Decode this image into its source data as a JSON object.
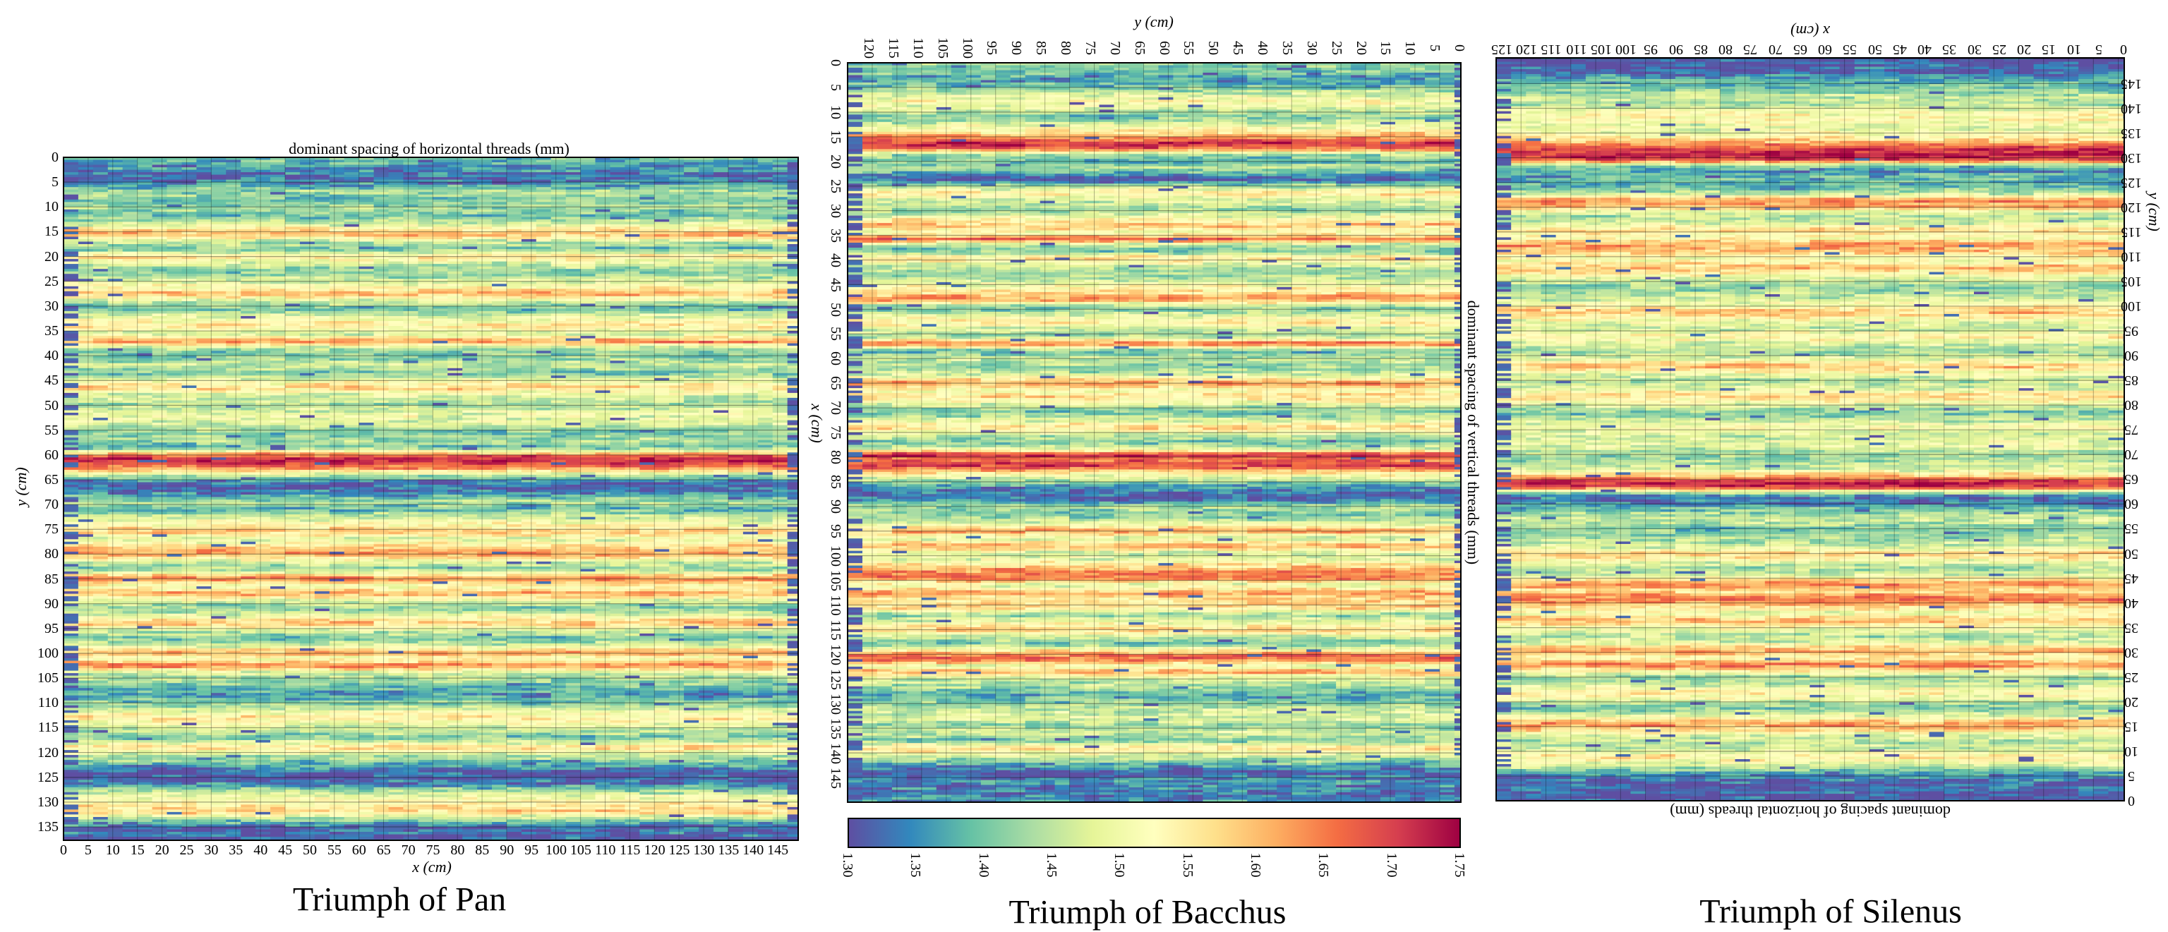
{
  "colormap": {
    "name": "Spectral",
    "stops": [
      "#5e4fa2",
      "#3288bd",
      "#66c2a5",
      "#abdda4",
      "#e6f598",
      "#ffffbf",
      "#fee08b",
      "#fdae61",
      "#f46d43",
      "#d53e4f",
      "#9e0142"
    ],
    "vmin": 1.3,
    "vmax": 1.75,
    "ticks": [
      "1.30",
      "1.35",
      "1.40",
      "1.45",
      "1.50",
      "1.55",
      "1.60",
      "1.65",
      "1.70",
      "1.75"
    ]
  },
  "chart_data": [
    {
      "type": "heatmap",
      "caption": "Triumph of Pan",
      "title": "dominant spacing of horizontal threads (mm)",
      "xlabel": "x (cm)",
      "ylabel": "y (cm)",
      "xlim": [
        0,
        149
      ],
      "ylim": [
        0,
        138
      ],
      "y_direction": "down",
      "grid": true,
      "xticks": [
        "0",
        "5",
        "10",
        "15",
        "20",
        "25",
        "30",
        "35",
        "40",
        "45",
        "50",
        "55",
        "60",
        "65",
        "70",
        "75",
        "80",
        "85",
        "90",
        "95",
        "100",
        "105",
        "110",
        "115",
        "120",
        "125",
        "130",
        "135",
        "140",
        "145"
      ],
      "yticks": [
        "0",
        "5",
        "10",
        "15",
        "20",
        "25",
        "30",
        "35",
        "40",
        "45",
        "50",
        "55",
        "60",
        "65",
        "70",
        "75",
        "80",
        "85",
        "90",
        "95",
        "100",
        "105",
        "110",
        "115",
        "120",
        "125",
        "130",
        "135"
      ],
      "row_profile": [
        [
          0,
          1.4
        ],
        [
          2,
          1.36
        ],
        [
          4,
          1.32
        ],
        [
          5.5,
          1.36
        ],
        [
          7,
          1.44
        ],
        [
          8.5,
          1.4
        ],
        [
          10,
          1.43
        ],
        [
          12,
          1.4
        ],
        [
          13.5,
          1.48
        ],
        [
          15.5,
          1.62
        ],
        [
          17,
          1.46
        ],
        [
          18.5,
          1.4
        ],
        [
          20,
          1.56
        ],
        [
          21.5,
          1.46
        ],
        [
          23,
          1.41
        ],
        [
          25,
          1.47
        ],
        [
          27.5,
          1.61
        ],
        [
          29,
          1.47
        ],
        [
          30.5,
          1.38
        ],
        [
          32,
          1.48
        ],
        [
          34,
          1.56
        ],
        [
          35.5,
          1.46
        ],
        [
          37.2,
          1.64
        ],
        [
          38.5,
          1.44
        ],
        [
          40,
          1.4
        ],
        [
          42,
          1.47
        ],
        [
          43.5,
          1.4
        ],
        [
          45,
          1.5
        ],
        [
          46.5,
          1.58
        ],
        [
          48,
          1.47
        ],
        [
          50,
          1.44
        ],
        [
          52,
          1.5
        ],
        [
          54,
          1.47
        ],
        [
          55.5,
          1.4
        ],
        [
          57,
          1.44
        ],
        [
          58.5,
          1.38
        ],
        [
          60,
          1.66
        ],
        [
          61,
          1.72
        ],
        [
          62.5,
          1.66
        ],
        [
          64,
          1.46
        ],
        [
          65.5,
          1.33
        ],
        [
          66.5,
          1.31
        ],
        [
          68,
          1.36
        ],
        [
          69.5,
          1.44
        ],
        [
          71,
          1.38
        ],
        [
          72.5,
          1.47
        ],
        [
          74,
          1.52
        ],
        [
          75.5,
          1.6
        ],
        [
          77,
          1.48
        ],
        [
          78.5,
          1.58
        ],
        [
          80,
          1.63
        ],
        [
          81.5,
          1.48
        ],
        [
          83,
          1.42
        ],
        [
          85,
          1.66
        ],
        [
          86.5,
          1.5
        ],
        [
          88,
          1.62
        ],
        [
          89.5,
          1.47
        ],
        [
          91,
          1.41
        ],
        [
          92.5,
          1.5
        ],
        [
          94,
          1.6
        ],
        [
          95.5,
          1.46
        ],
        [
          97,
          1.4
        ],
        [
          98.5,
          1.47
        ],
        [
          100,
          1.63
        ],
        [
          101,
          1.5
        ],
        [
          102.5,
          1.65
        ],
        [
          104,
          1.46
        ],
        [
          105.5,
          1.43
        ],
        [
          107,
          1.38
        ],
        [
          108.5,
          1.36
        ],
        [
          110,
          1.41
        ],
        [
          111.5,
          1.48
        ],
        [
          113,
          1.56
        ],
        [
          115,
          1.47
        ],
        [
          117,
          1.4
        ],
        [
          119,
          1.57
        ],
        [
          120.5,
          1.46
        ],
        [
          122.5,
          1.38
        ],
        [
          124,
          1.31
        ],
        [
          125.5,
          1.31
        ],
        [
          127,
          1.38
        ],
        [
          128.5,
          1.48
        ],
        [
          130,
          1.53
        ],
        [
          132,
          1.59
        ],
        [
          133.5,
          1.42
        ],
        [
          135,
          1.33
        ],
        [
          138,
          1.32
        ]
      ]
    },
    {
      "type": "heatmap",
      "caption": "Triumph of Bacchus",
      "title": "dominant spacing of vertical threads (mm)",
      "xlabel": "x (cm)",
      "ylabel": "y (cm)",
      "xlim": [
        0,
        150
      ],
      "ylim": [
        0,
        124
      ],
      "orientation": "rotated 90° clockwise",
      "grid": true,
      "xticks": [
        "0",
        "5",
        "10",
        "15",
        "20",
        "25",
        "30",
        "35",
        "40",
        "45",
        "50",
        "55",
        "60",
        "65",
        "70",
        "75",
        "80",
        "85",
        "90",
        "95",
        "100",
        "105",
        "110",
        "115",
        "120",
        "125",
        "130",
        "135",
        "140",
        "145"
      ],
      "yticks": [
        "0",
        "5",
        "10",
        "15",
        "20",
        "25",
        "30",
        "35",
        "40",
        "45",
        "50",
        "55",
        "60",
        "65",
        "70",
        "75",
        "80",
        "85",
        "90",
        "95",
        "100",
        "105",
        "110",
        "115",
        "120"
      ],
      "row_profile": [
        [
          0,
          1.42
        ],
        [
          2,
          1.4
        ],
        [
          3.5,
          1.36
        ],
        [
          5,
          1.4
        ],
        [
          6.5,
          1.48
        ],
        [
          8,
          1.53
        ],
        [
          9.5,
          1.47
        ],
        [
          11,
          1.4
        ],
        [
          12.5,
          1.48
        ],
        [
          14,
          1.55
        ],
        [
          15.5,
          1.66
        ],
        [
          16.5,
          1.72
        ],
        [
          17.5,
          1.66
        ],
        [
          18.5,
          1.44
        ],
        [
          20,
          1.39
        ],
        [
          21.5,
          1.44
        ],
        [
          23,
          1.33
        ],
        [
          24,
          1.32
        ],
        [
          25,
          1.44
        ],
        [
          26.5,
          1.56
        ],
        [
          28,
          1.48
        ],
        [
          30,
          1.42
        ],
        [
          31.5,
          1.52
        ],
        [
          33,
          1.6
        ],
        [
          34.5,
          1.5
        ],
        [
          35.8,
          1.68
        ],
        [
          37,
          1.44
        ],
        [
          38.5,
          1.4
        ],
        [
          39.5,
          1.58
        ],
        [
          41,
          1.48
        ],
        [
          43,
          1.42
        ],
        [
          45,
          1.5
        ],
        [
          48,
          1.64
        ],
        [
          49,
          1.48
        ],
        [
          50,
          1.4
        ],
        [
          51.5,
          1.5
        ],
        [
          52.5,
          1.56
        ],
        [
          54,
          1.47
        ],
        [
          55.5,
          1.43
        ],
        [
          57,
          1.67
        ],
        [
          58.5,
          1.38
        ],
        [
          60,
          1.46
        ],
        [
          62,
          1.42
        ],
        [
          63.5,
          1.48
        ],
        [
          65,
          1.64
        ],
        [
          66.5,
          1.52
        ],
        [
          68,
          1.57
        ],
        [
          69.5,
          1.46
        ],
        [
          71,
          1.4
        ],
        [
          72.5,
          1.48
        ],
        [
          74,
          1.58
        ],
        [
          75.5,
          1.46
        ],
        [
          77,
          1.4
        ],
        [
          78.5,
          1.5
        ],
        [
          79.5,
          1.73
        ],
        [
          80.5,
          1.66
        ],
        [
          82,
          1.7
        ],
        [
          83,
          1.56
        ],
        [
          84.5,
          1.46
        ],
        [
          86,
          1.36
        ],
        [
          87.5,
          1.32
        ],
        [
          89,
          1.34
        ],
        [
          90,
          1.44
        ],
        [
          91.5,
          1.4
        ],
        [
          93,
          1.46
        ],
        [
          95,
          1.62
        ],
        [
          96.5,
          1.47
        ],
        [
          98,
          1.62
        ],
        [
          99.5,
          1.47
        ],
        [
          101,
          1.5
        ],
        [
          103,
          1.63
        ],
        [
          104.5,
          1.66
        ],
        [
          106,
          1.48
        ],
        [
          107.5,
          1.62
        ],
        [
          109,
          1.56
        ],
        [
          110.5,
          1.58
        ],
        [
          112,
          1.42
        ],
        [
          113.5,
          1.5
        ],
        [
          115,
          1.58
        ],
        [
          116.5,
          1.46
        ],
        [
          118,
          1.4
        ],
        [
          120,
          1.64
        ],
        [
          121,
          1.67
        ],
        [
          122.5,
          1.48
        ],
        [
          123.5,
          1.62
        ],
        [
          125,
          1.46
        ],
        [
          126.5,
          1.44
        ],
        [
          128,
          1.38
        ],
        [
          129.5,
          1.4
        ],
        [
          131,
          1.46
        ],
        [
          133,
          1.48
        ],
        [
          134.5,
          1.42
        ],
        [
          136,
          1.47
        ],
        [
          137.5,
          1.4
        ],
        [
          139,
          1.58
        ],
        [
          140.5,
          1.48
        ],
        [
          142,
          1.4
        ],
        [
          143.5,
          1.32
        ],
        [
          144.5,
          1.31
        ],
        [
          146,
          1.36
        ],
        [
          148,
          1.33
        ],
        [
          150,
          1.36
        ]
      ]
    },
    {
      "type": "heatmap",
      "caption": "Triumph of Silenus",
      "title": "dominant spacing of horizontal threads (mm)",
      "xlabel": "x (cm)",
      "ylabel": "y (cm)",
      "xlim": [
        0,
        126
      ],
      "ylim": [
        0,
        150
      ],
      "orientation": "rotated 180°",
      "grid": true,
      "xticks": [
        "0",
        "5",
        "10",
        "15",
        "20",
        "25",
        "30",
        "35",
        "40",
        "45",
        "50",
        "55",
        "60",
        "65",
        "70",
        "75",
        "80",
        "85",
        "90",
        "95",
        "100",
        "105",
        "110",
        "115",
        "120",
        "125"
      ],
      "yticks": [
        "0",
        "5",
        "10",
        "15",
        "20",
        "25",
        "30",
        "35",
        "40",
        "45",
        "50",
        "55",
        "60",
        "65",
        "70",
        "75",
        "80",
        "85",
        "90",
        "95",
        "100",
        "105",
        "110",
        "115",
        "120",
        "125",
        "130",
        "135",
        "140",
        "145"
      ],
      "row_profile": [
        [
          0,
          1.31
        ],
        [
          2,
          1.31
        ],
        [
          4,
          1.32
        ],
        [
          5.5,
          1.36
        ],
        [
          7,
          1.46
        ],
        [
          9,
          1.56
        ],
        [
          10.5,
          1.46
        ],
        [
          12,
          1.44
        ],
        [
          13.5,
          1.5
        ],
        [
          15.5,
          1.64
        ],
        [
          17,
          1.5
        ],
        [
          19,
          1.4
        ],
        [
          20.5,
          1.48
        ],
        [
          22,
          1.56
        ],
        [
          23.5,
          1.46
        ],
        [
          25,
          1.42
        ],
        [
          26.5,
          1.55
        ],
        [
          27.5,
          1.66
        ],
        [
          29,
          1.52
        ],
        [
          30.5,
          1.63
        ],
        [
          32,
          1.48
        ],
        [
          33.5,
          1.44
        ],
        [
          35,
          1.52
        ],
        [
          36.5,
          1.6
        ],
        [
          38,
          1.5
        ],
        [
          39.5,
          1.58
        ],
        [
          41,
          1.66
        ],
        [
          42.5,
          1.56
        ],
        [
          44,
          1.64
        ],
        [
          45.5,
          1.48
        ],
        [
          47,
          1.43
        ],
        [
          48.5,
          1.5
        ],
        [
          50,
          1.58
        ],
        [
          51.5,
          1.47
        ],
        [
          53,
          1.44
        ],
        [
          55,
          1.4
        ],
        [
          57,
          1.47
        ],
        [
          58.5,
          1.42
        ],
        [
          60,
          1.34
        ],
        [
          61.5,
          1.33
        ],
        [
          62.5,
          1.46
        ],
        [
          63.5,
          1.7
        ],
        [
          64.5,
          1.73
        ],
        [
          65.5,
          1.62
        ],
        [
          67,
          1.48
        ],
        [
          68.5,
          1.44
        ],
        [
          70,
          1.42
        ],
        [
          72,
          1.5
        ],
        [
          74,
          1.46
        ],
        [
          75.5,
          1.52
        ],
        [
          77,
          1.46
        ],
        [
          78.5,
          1.4
        ],
        [
          80,
          1.48
        ],
        [
          82,
          1.58
        ],
        [
          83.5,
          1.48
        ],
        [
          85,
          1.44
        ],
        [
          86.5,
          1.5
        ],
        [
          88,
          1.6
        ],
        [
          89.5,
          1.48
        ],
        [
          91,
          1.43
        ],
        [
          92.5,
          1.48
        ],
        [
          94,
          1.54
        ],
        [
          95.5,
          1.46
        ],
        [
          97,
          1.5
        ],
        [
          99,
          1.6
        ],
        [
          100.5,
          1.5
        ],
        [
          102,
          1.46
        ],
        [
          104,
          1.42
        ],
        [
          106,
          1.5
        ],
        [
          108,
          1.6
        ],
        [
          109.5,
          1.5
        ],
        [
          111,
          1.58
        ],
        [
          112.5,
          1.63
        ],
        [
          114,
          1.5
        ],
        [
          115.5,
          1.58
        ],
        [
          117,
          1.46
        ],
        [
          118.5,
          1.44
        ],
        [
          120,
          1.6
        ],
        [
          121.5,
          1.63
        ],
        [
          123,
          1.44
        ],
        [
          124.5,
          1.38
        ],
        [
          126,
          1.4
        ],
        [
          127.5,
          1.36
        ],
        [
          128.5,
          1.4
        ],
        [
          129.5,
          1.68
        ],
        [
          130.5,
          1.73
        ],
        [
          132,
          1.7
        ],
        [
          133.5,
          1.58
        ],
        [
          135,
          1.52
        ],
        [
          136.5,
          1.48
        ],
        [
          138,
          1.54
        ],
        [
          139.5,
          1.5
        ],
        [
          141,
          1.44
        ],
        [
          142.5,
          1.46
        ],
        [
          144,
          1.4
        ],
        [
          145.5,
          1.38
        ],
        [
          147,
          1.34
        ],
        [
          148.5,
          1.31
        ],
        [
          150,
          1.31
        ]
      ]
    }
  ]
}
